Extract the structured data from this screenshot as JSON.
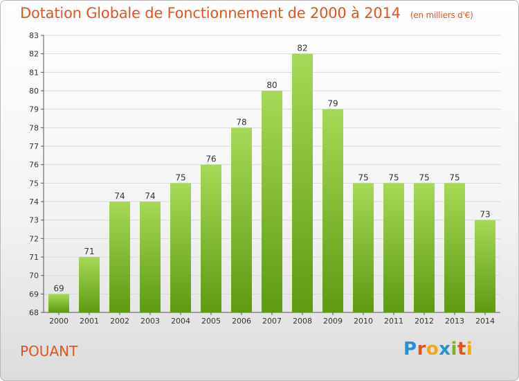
{
  "header": {
    "title": "Dotation Globale de Fonctionnement de 2000 à 2014",
    "unit": "(en milliers d'€)"
  },
  "footer": {
    "commune": "POUANT",
    "logo_text": "Proxiti"
  },
  "colors": {
    "accent": "#e2541c",
    "bar_light": "#a6d957",
    "bar_dark": "#5e9a12",
    "grid": "#d9d9d9"
  },
  "chart_data": {
    "type": "bar",
    "title": "Dotation Globale de Fonctionnement de 2000 à 2014",
    "subtitle": "(en milliers d'€)",
    "categories": [
      "2000",
      "2001",
      "2002",
      "2003",
      "2004",
      "2005",
      "2006",
      "2007",
      "2008",
      "2009",
      "2010",
      "2011",
      "2012",
      "2013",
      "2014"
    ],
    "values": [
      69,
      71,
      74,
      74,
      75,
      76,
      78,
      80,
      82,
      79,
      75,
      75,
      75,
      75,
      73
    ],
    "ylim": [
      68,
      83
    ],
    "yticks": [
      68,
      69,
      70,
      71,
      72,
      73,
      74,
      75,
      76,
      77,
      78,
      79,
      80,
      81,
      82,
      83
    ],
    "grid": true,
    "data_labels": true
  }
}
